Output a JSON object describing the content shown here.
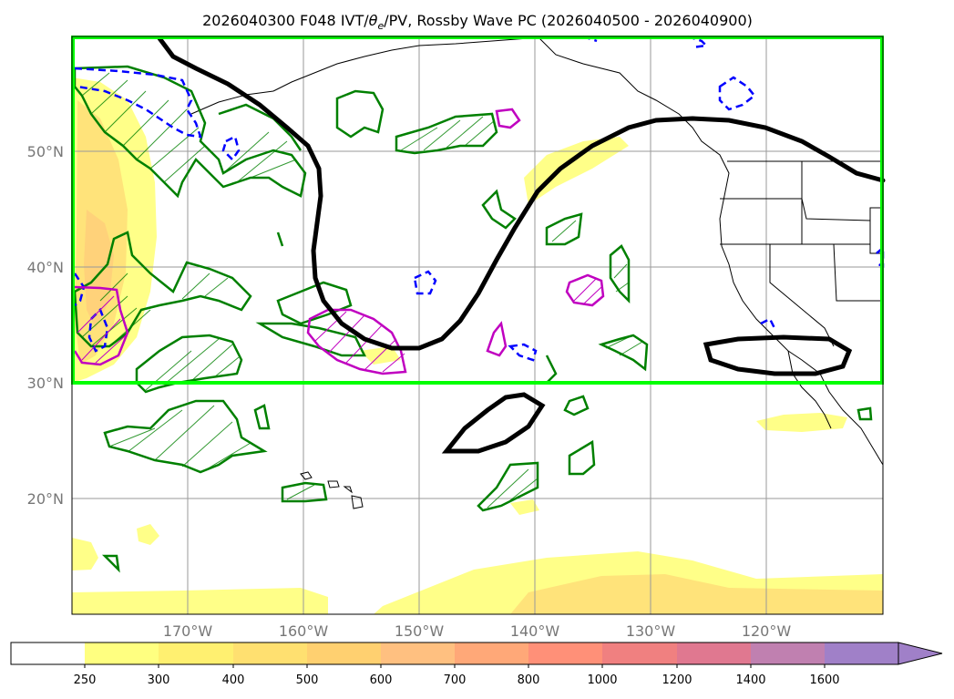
{
  "title": {
    "prefix": "2026040300 F048 IVT/",
    "theta": "θ",
    "theta_sub": "e",
    "suffix": "/PV, Rossby Wave PC (2026040500 - 2026040900)"
  },
  "map": {
    "projection": "cylindrical",
    "lon_range_deg_west": [
      180,
      110
    ],
    "lat_range_deg_north": [
      10,
      60
    ],
    "domain_box_color": "#00ff00",
    "domain_box": {
      "lat_min": 30,
      "lat_max": 60,
      "lon_min_west": 180,
      "lon_max_west": 110
    },
    "lat_labels": [
      "50°N",
      "40°N",
      "30°N",
      "20°N"
    ],
    "lat_values": [
      50,
      40,
      30,
      20
    ],
    "lon_labels": [
      "170°W",
      "160°W",
      "150°W",
      "140°W",
      "130°W",
      "120°W"
    ],
    "lon_values_west": [
      170,
      160,
      150,
      140,
      130,
      120
    ],
    "grid": true,
    "contour_colors": {
      "pc_line": "#000000",
      "positive": "#008000",
      "negative": "#0000ff",
      "pv": "#c000c0"
    }
  },
  "colorbar": {
    "ticks": [
      "250",
      "300",
      "400",
      "500",
      "600",
      "700",
      "800",
      "1000",
      "1200",
      "1400",
      "1600"
    ],
    "colors": [
      "#ffff80",
      "#fff070",
      "#ffe070",
      "#ffd070",
      "#ffc080",
      "#ffa878",
      "#ff9078",
      "#f08080",
      "#e07890",
      "#c080b0",
      "#a080c8"
    ],
    "extend": "max"
  }
}
